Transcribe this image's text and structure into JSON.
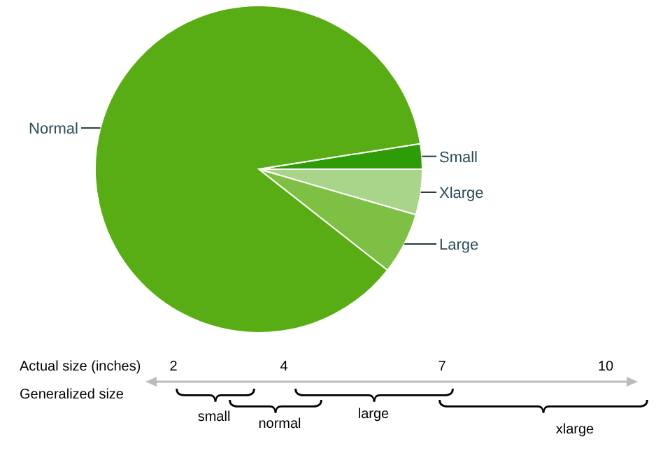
{
  "chart_data": {
    "type": "pie",
    "categories": [
      "Small",
      "Xlarge",
      "Large",
      "Normal"
    ],
    "values": [
      2.5,
      4.5,
      6.1,
      86.9
    ],
    "colors": [
      "#2e9c07",
      "#a8d58a",
      "#7dc043",
      "#58ad14"
    ],
    "annotations": [
      "Actual size (inches)",
      "2",
      "4",
      "7",
      "10",
      "Generalized size",
      "small",
      "normal",
      "large",
      "xlarge"
    ]
  }
}
